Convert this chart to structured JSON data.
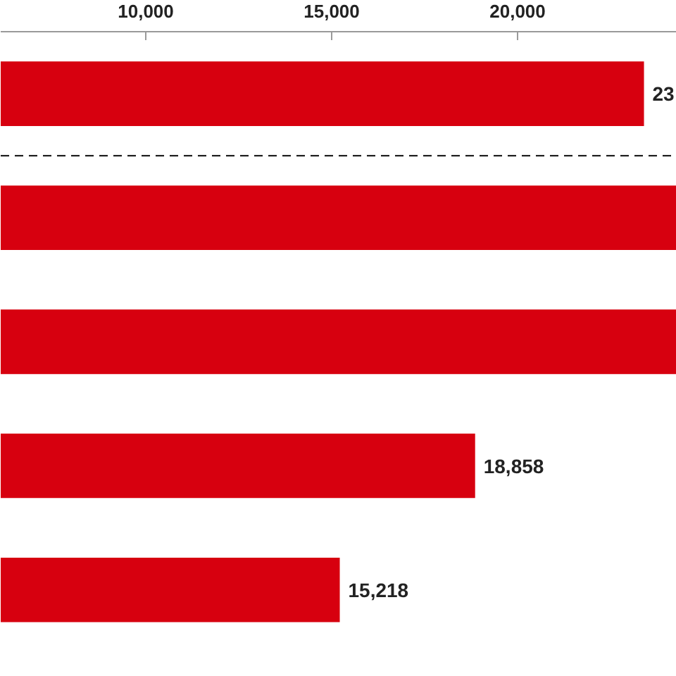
{
  "chart_data": {
    "type": "bar",
    "orientation": "horizontal",
    "categories": [
      null,
      null,
      null,
      null,
      null
    ],
    "values": [
      23400,
      24280,
      24280,
      18858,
      15218
    ],
    "value_labels": [
      null,
      null,
      null,
      "18,858",
      "15,218"
    ],
    "annotations": [
      "23"
    ],
    "color": "#d7000f",
    "xlim": [
      6098,
      24280
    ],
    "xticks": [
      {
        "value": 10000,
        "label": "10,000"
      },
      {
        "value": 15000,
        "label": "15,000"
      },
      {
        "value": 20000,
        "label": "20,000"
      }
    ],
    "grid": false
  }
}
